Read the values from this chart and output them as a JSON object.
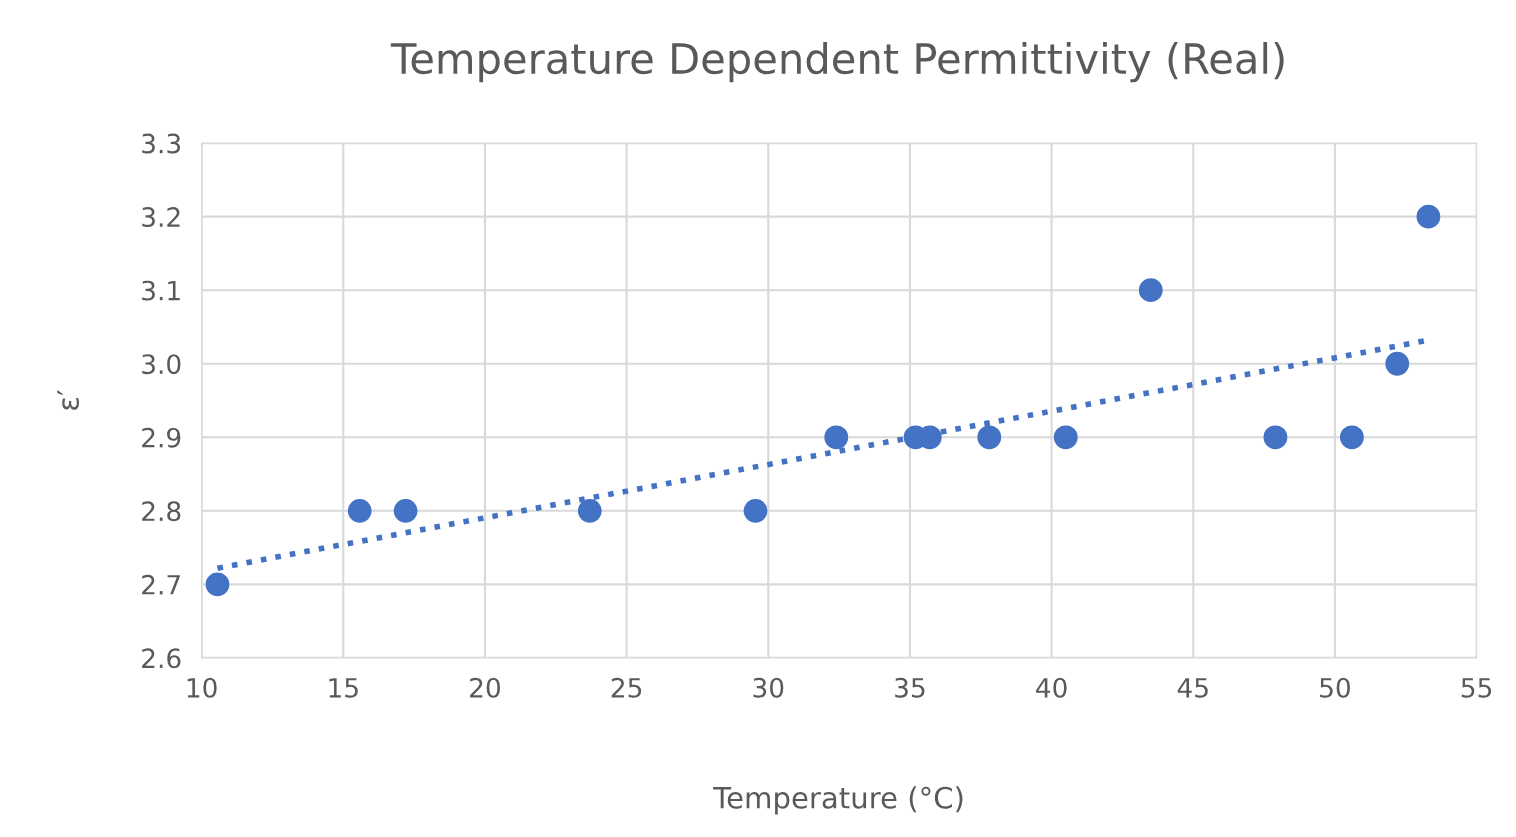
{
  "chart_data": {
    "type": "scatter",
    "title": "Temperature Dependent Permittivity (Real)",
    "xlabel": "Temperature (°C)",
    "ylabel": "ε′",
    "xlim": [
      10,
      55
    ],
    "xticks": [
      10,
      15,
      20,
      25,
      30,
      35,
      40,
      45,
      50,
      55
    ],
    "ylim": [
      2.6,
      3.3
    ],
    "yticks": [
      {
        "value": 2.6,
        "label": "2.6"
      },
      {
        "value": 2.7,
        "label": "2.7"
      },
      {
        "value": 2.8,
        "label": "2.8"
      },
      {
        "value": 2.9,
        "label": "2.9"
      },
      {
        "value": 3.0,
        "label": "3.0"
      },
      {
        "value": 3.1,
        "label": "3.1"
      },
      {
        "value": 3.2,
        "label": "3.2"
      },
      {
        "value": 3.3,
        "label": "3.3"
      }
    ],
    "grid": true,
    "marker": "circle",
    "series": [
      {
        "color": "#4472c4",
        "x": [
          10.56,
          15.58,
          17.2,
          23.7,
          29.55,
          32.4,
          35.2,
          35.7,
          37.8,
          40.5,
          43.5,
          47.9,
          50.6,
          52.2,
          53.3
        ],
        "values": [
          2.7,
          2.8,
          2.8,
          2.8,
          2.8,
          2.9,
          2.9,
          2.9,
          2.9,
          2.9,
          3.1,
          2.9,
          2.9,
          3.0,
          3.2
        ]
      },
      {
        "type": "line",
        "color": "#4472c4",
        "line_style": "dotted",
        "marker": "none",
        "x": [
          10.56,
          53.3
        ],
        "values": [
          2.722,
          3.032
        ]
      }
    ]
  }
}
